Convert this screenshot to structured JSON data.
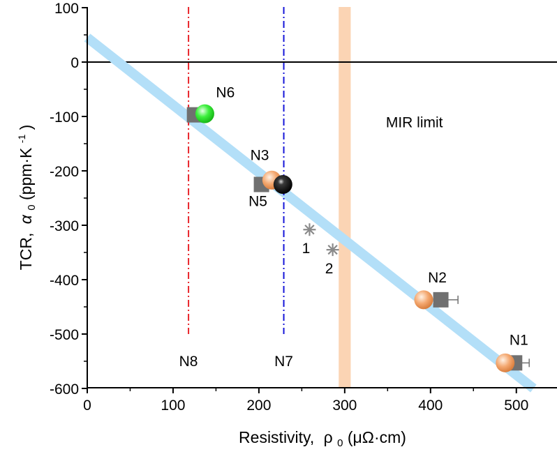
{
  "chart_data": {
    "type": "scatter",
    "xlabel_main": "Resistivity,",
    "xlabel_sym": "ρ",
    "xlabel_sub": "0",
    "xlabel_unit": "(μΩ·cm)",
    "ylabel_main": "TCR,",
    "ylabel_sym": "α",
    "ylabel_sub": "0",
    "ylabel_unit": "(ppm·K",
    "ylabel_sup": "-1",
    "ylabel_close": ")",
    "xlim": [
      0,
      550
    ],
    "ylim": [
      -600,
      100
    ],
    "xticks": [
      0,
      100,
      200,
      300,
      400,
      500
    ],
    "xtick_labels": [
      "0",
      "100",
      "200",
      "300",
      "400",
      "500"
    ],
    "yticks": [
      -600,
      -500,
      -400,
      -300,
      -200,
      -100,
      0,
      100
    ],
    "ytick_labels": [
      "-600",
      "-500",
      "-400",
      "-300",
      "-200",
      "-100",
      "0",
      "100"
    ],
    "zero_line": 0,
    "fit_line": {
      "x": [
        0,
        520
      ],
      "y": [
        45,
        -600
      ],
      "color": "#b3dff8"
    },
    "mir_band": {
      "x_from": 293,
      "x_to": 307,
      "label": "MIR limit",
      "color": "#fbd4b4"
    },
    "vertical_lines": [
      {
        "x": 118,
        "y_from": -500,
        "y_to": 100,
        "label": "N8",
        "color": "#e8242a"
      },
      {
        "x": 229,
        "y_from": -500,
        "y_to": 100,
        "label": "N7",
        "color": "#1515d8"
      }
    ],
    "squares": {
      "color": "#707070",
      "points": [
        {
          "x": 125,
          "y": -97
        },
        {
          "x": 203,
          "y": -225
        },
        {
          "x": 412,
          "y": -437,
          "err": 20
        },
        {
          "x": 498,
          "y": -553,
          "err": 17
        }
      ]
    },
    "spheres": [
      {
        "x": 137,
        "y": -95,
        "color": "#3ef03e"
      },
      {
        "x": 215,
        "y": -217,
        "color": "#f4a870"
      },
      {
        "x": 228,
        "y": -225,
        "color": "#0b0b0b"
      },
      {
        "x": 392,
        "y": -437,
        "color": "#f4a870"
      },
      {
        "x": 487,
        "y": -553,
        "color": "#f4a870"
      }
    ],
    "stars": {
      "color": "#8a8a8a",
      "points": [
        {
          "x": 259,
          "y": -308,
          "label": "1"
        },
        {
          "x": 286,
          "y": -345,
          "label": "2"
        }
      ]
    },
    "point_labels": [
      {
        "text": "N6",
        "x": 150,
        "y": -65
      },
      {
        "text": "N3",
        "x": 190,
        "y": -180
      },
      {
        "text": "N5",
        "x": 188,
        "y": -265
      },
      {
        "text": "N2",
        "x": 397,
        "y": -405
      },
      {
        "text": "N1",
        "x": 492,
        "y": -520
      }
    ],
    "mir_label_pos": {
      "x": 348,
      "y": -120
    },
    "grid": false
  }
}
